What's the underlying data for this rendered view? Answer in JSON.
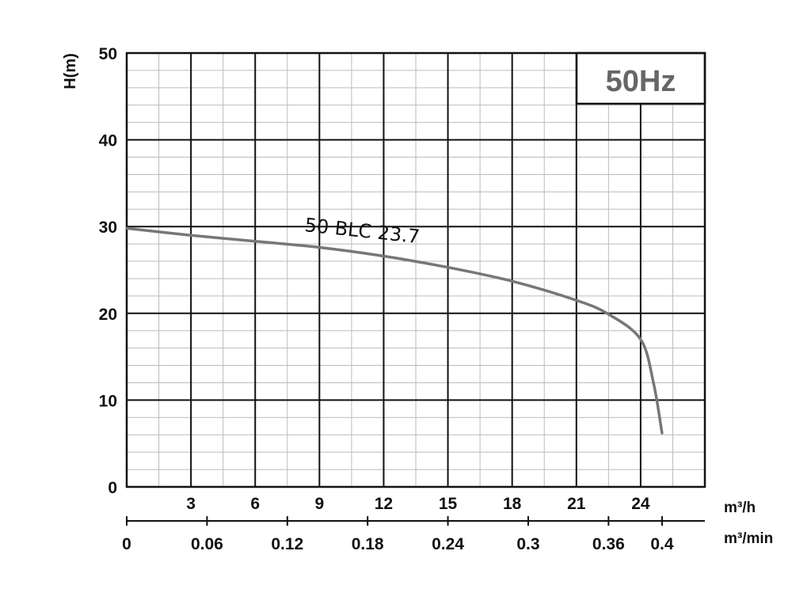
{
  "chart_data": {
    "type": "line",
    "frequency_label": "50Hz",
    "ylabel": "H(m)",
    "ylim": [
      0,
      50
    ],
    "y_ticks": [
      "50",
      "40",
      "30",
      "20",
      "10",
      "0"
    ],
    "x_axis_primary": {
      "unit": "m³/h",
      "ticks": [
        "3",
        "6",
        "9",
        "12",
        "15",
        "18",
        "21",
        "24"
      ],
      "range": [
        0,
        27
      ]
    },
    "x_axis_secondary": {
      "unit": "m³/min",
      "ticks": [
        "0",
        "0.06",
        "0.12",
        "0.18",
        "0.24",
        "0.3",
        "0.36",
        "0.4"
      ],
      "tick_values": [
        0,
        0.06,
        0.12,
        0.18,
        0.24,
        0.3,
        0.36,
        0.4
      ]
    },
    "series": [
      {
        "name": "50 BLC 23.7",
        "color": "#777777",
        "x": [
          0,
          3,
          6,
          9,
          12,
          15,
          18,
          21,
          22.5,
          24,
          24.6,
          25.0
        ],
        "y": [
          29.8,
          29.0,
          28.3,
          27.6,
          26.6,
          25.3,
          23.7,
          21.5,
          19.9,
          17.0,
          12.0,
          6.2
        ]
      }
    ]
  }
}
